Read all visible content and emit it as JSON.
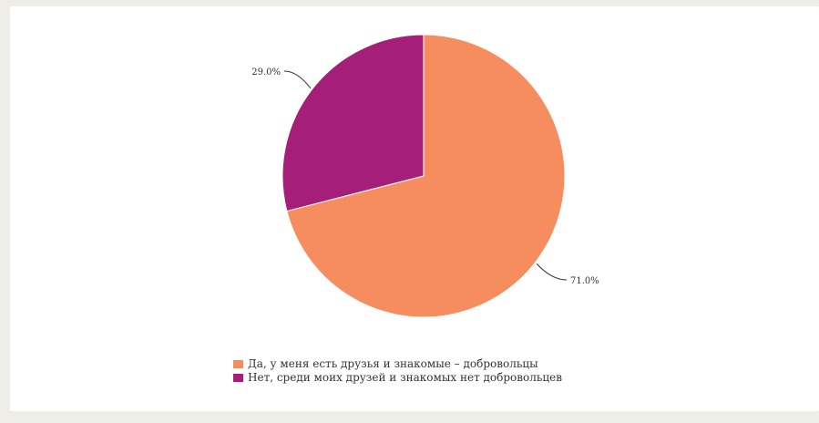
{
  "chart_data": {
    "type": "pie",
    "title": "",
    "slices": [
      {
        "label": "Да, у меня есть друзья и знакомые – добровольцы",
        "value": 71.0,
        "value_label": "71.0%",
        "color": "#f68d5f"
      },
      {
        "label": "Нет, среди моих друзей и знакомых нет добровольцев",
        "value": 29.0,
        "value_label": "29.0%",
        "color": "#a51f78"
      }
    ],
    "start_angle": "12 o'clock",
    "direction": "clockwise",
    "legend_position": "bottom-center"
  }
}
